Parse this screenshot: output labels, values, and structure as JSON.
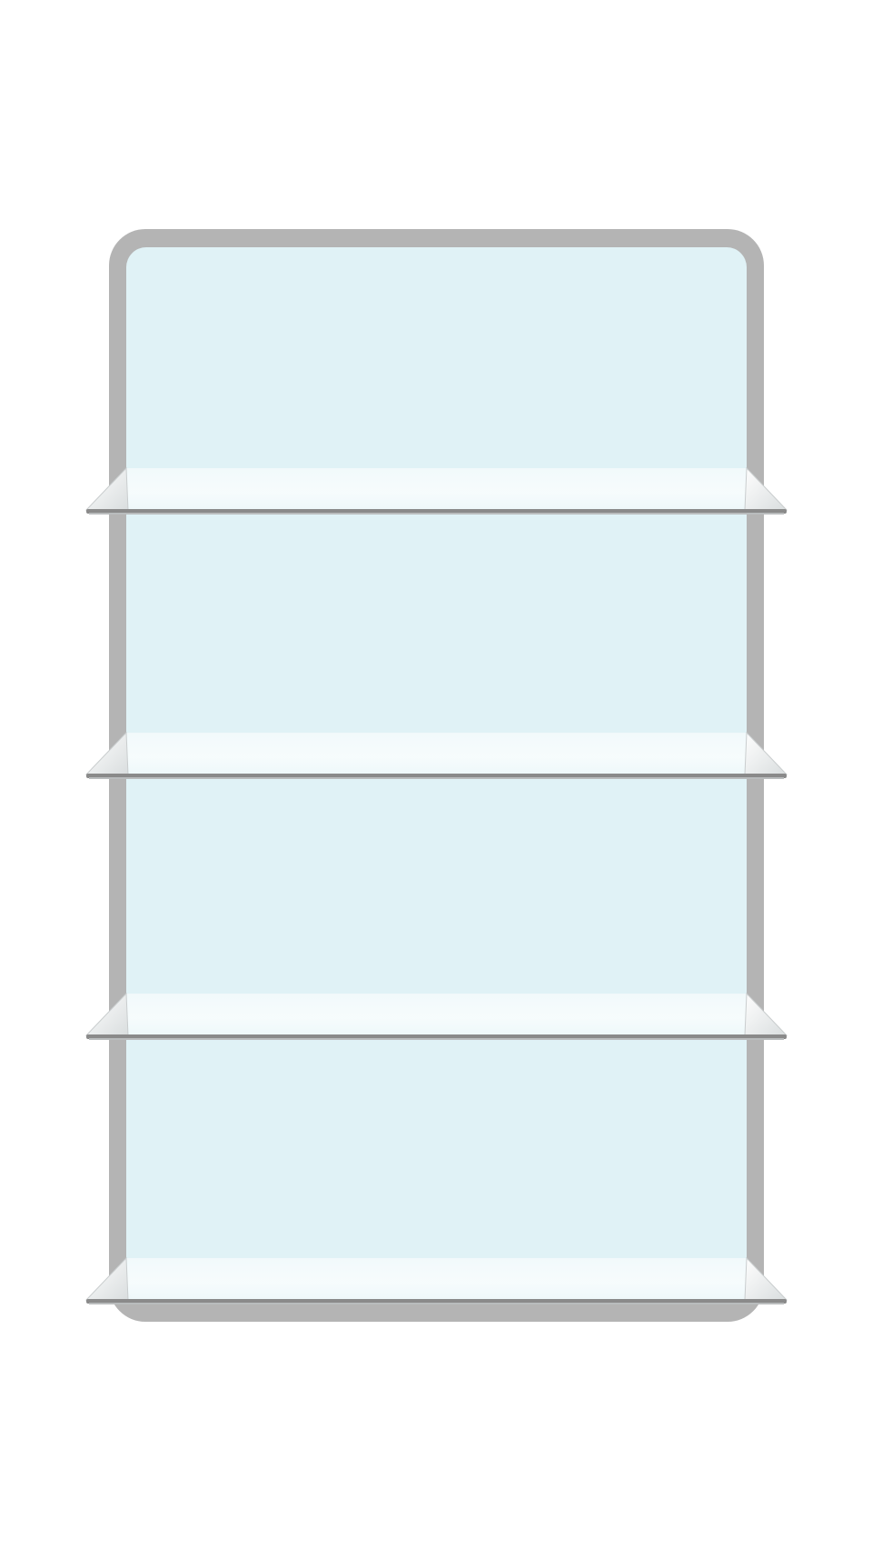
{
  "cabinet": {
    "frame_color": "#b4b4b4",
    "back_panel_color": "#e0f2f6",
    "shelf_count": 4
  },
  "shelves": [
    {
      "id": "shelf-1",
      "glass_color": "#f4fbfd",
      "edge_color": "#8a8a8a"
    },
    {
      "id": "shelf-2",
      "glass_color": "#f4fbfd",
      "edge_color": "#8a8a8a"
    },
    {
      "id": "shelf-3",
      "glass_color": "#f4fbfd",
      "edge_color": "#8a8a8a"
    },
    {
      "id": "shelf-4",
      "glass_color": "#f4fbfd",
      "edge_color": "#8a8a8a"
    }
  ]
}
